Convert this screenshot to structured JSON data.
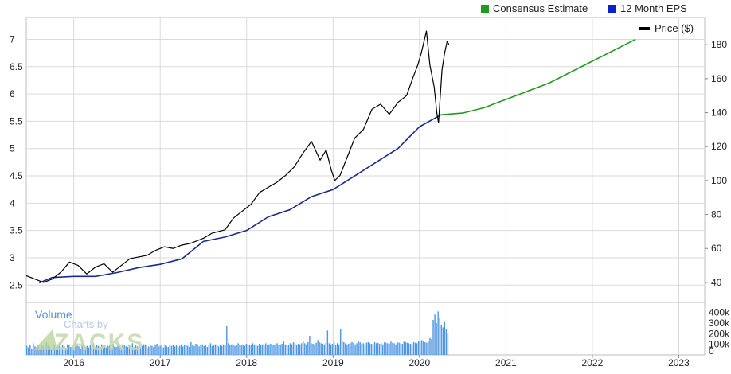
{
  "chart_data": {
    "type": "line",
    "legend": {
      "placement": "top-right",
      "items": [
        {
          "label": "Consensus Estimate",
          "color": "#1f9a1f"
        },
        {
          "label": "12 Month EPS",
          "color": "#0b1fd1"
        },
        {
          "label": "Price ($)",
          "color": "#000000"
        }
      ]
    },
    "grid": true,
    "xaxis": {
      "ticks": [
        "2016",
        "2017",
        "2018",
        "2019",
        "2020",
        "2021",
        "2022",
        "2023"
      ],
      "range": [
        2015.45,
        2023.3
      ]
    },
    "yaxis_left": {
      "ticks": [
        "7",
        "6.5",
        "6",
        "5.5",
        "5",
        "4.5",
        "4",
        "3.5",
        "3",
        "2.5"
      ],
      "range": [
        2.3,
        7.4
      ]
    },
    "yaxis_right": {
      "ticks": [
        "180",
        "160",
        "140",
        "120",
        "100",
        "80",
        "60",
        "40"
      ],
      "range": [
        32,
        196
      ]
    },
    "series": [
      {
        "name": "12 Month EPS",
        "axis": "left",
        "color": "#0b1fd1",
        "points": [
          [
            2015.6,
            2.54
          ],
          [
            2015.75,
            2.64
          ],
          [
            2016.0,
            2.66
          ],
          [
            2016.25,
            2.66
          ],
          [
            2016.5,
            2.73
          ],
          [
            2016.75,
            2.82
          ],
          [
            2017.0,
            2.88
          ],
          [
            2017.25,
            2.98
          ],
          [
            2017.5,
            3.3
          ],
          [
            2017.75,
            3.38
          ],
          [
            2018.0,
            3.5
          ],
          [
            2018.25,
            3.75
          ],
          [
            2018.5,
            3.88
          ],
          [
            2018.75,
            4.12
          ],
          [
            2019.0,
            4.25
          ],
          [
            2019.25,
            4.5
          ],
          [
            2019.5,
            4.75
          ],
          [
            2019.75,
            5.0
          ],
          [
            2020.0,
            5.4
          ],
          [
            2020.25,
            5.62
          ]
        ]
      },
      {
        "name": "Consensus Estimate",
        "axis": "left",
        "color": "#1f9a1f",
        "points": [
          [
            2020.25,
            5.62
          ],
          [
            2020.5,
            5.65
          ],
          [
            2020.75,
            5.75
          ],
          [
            2021.0,
            5.9
          ],
          [
            2021.25,
            6.05
          ],
          [
            2021.5,
            6.2
          ],
          [
            2021.75,
            6.4
          ],
          [
            2022.0,
            6.6
          ],
          [
            2022.25,
            6.8
          ],
          [
            2022.5,
            7.0
          ]
        ]
      },
      {
        "name": "Price ($)",
        "axis": "right",
        "color": "#000000",
        "points": [
          [
            2015.45,
            44
          ],
          [
            2015.55,
            42
          ],
          [
            2015.65,
            40
          ],
          [
            2015.75,
            42
          ],
          [
            2015.85,
            46
          ],
          [
            2015.95,
            52
          ],
          [
            2016.05,
            50
          ],
          [
            2016.15,
            45
          ],
          [
            2016.25,
            49
          ],
          [
            2016.35,
            51
          ],
          [
            2016.45,
            46
          ],
          [
            2016.55,
            50
          ],
          [
            2016.65,
            54
          ],
          [
            2016.75,
            55
          ],
          [
            2016.85,
            56
          ],
          [
            2016.95,
            59
          ],
          [
            2017.05,
            61
          ],
          [
            2017.15,
            60
          ],
          [
            2017.25,
            62
          ],
          [
            2017.35,
            63
          ],
          [
            2017.5,
            66
          ],
          [
            2017.6,
            69
          ],
          [
            2017.75,
            71
          ],
          [
            2017.85,
            78
          ],
          [
            2017.95,
            82
          ],
          [
            2018.05,
            86
          ],
          [
            2018.15,
            93
          ],
          [
            2018.25,
            96
          ],
          [
            2018.35,
            99
          ],
          [
            2018.45,
            103
          ],
          [
            2018.55,
            108
          ],
          [
            2018.65,
            116
          ],
          [
            2018.75,
            123
          ],
          [
            2018.85,
            112
          ],
          [
            2018.92,
            118
          ],
          [
            2018.98,
            106
          ],
          [
            2019.02,
            100
          ],
          [
            2019.08,
            103
          ],
          [
            2019.15,
            112
          ],
          [
            2019.25,
            125
          ],
          [
            2019.35,
            130
          ],
          [
            2019.45,
            142
          ],
          [
            2019.55,
            145
          ],
          [
            2019.65,
            139
          ],
          [
            2019.75,
            146
          ],
          [
            2019.85,
            150
          ],
          [
            2019.92,
            160
          ],
          [
            2019.98,
            168
          ],
          [
            2020.02,
            175
          ],
          [
            2020.08,
            188
          ],
          [
            2020.12,
            168
          ],
          [
            2020.17,
            155
          ],
          [
            2020.2,
            140
          ],
          [
            2020.22,
            134
          ],
          [
            2020.26,
            165
          ],
          [
            2020.29,
            175
          ],
          [
            2020.32,
            182
          ],
          [
            2020.34,
            180
          ]
        ]
      }
    ],
    "volume": {
      "label": "Volume",
      "ticks": [
        "400k",
        "300k",
        "200k",
        "100k",
        "0"
      ],
      "range": [
        0,
        450
      ],
      "color": "#4f97e3",
      "values": [
        85,
        70,
        95,
        60,
        110,
        80,
        75,
        90,
        65,
        100,
        85,
        70,
        120,
        95,
        80,
        60,
        105,
        90,
        75,
        85,
        110,
        70,
        95,
        80,
        65,
        100,
        90,
        75,
        85,
        70,
        115,
        95,
        80,
        60,
        90,
        105,
        75,
        85,
        70,
        95,
        80,
        110,
        65,
        90,
        85,
        75,
        100,
        80,
        95,
        70,
        85,
        90,
        65,
        105,
        80,
        75,
        95,
        85,
        70,
        100,
        90,
        80,
        75,
        95,
        85,
        110,
        70,
        90,
        80,
        95,
        75,
        85,
        100,
        90,
        70,
        80,
        95,
        85,
        75,
        90,
        105,
        80,
        85,
        95,
        70,
        90,
        80,
        75,
        100,
        85,
        95,
        80,
        90,
        75,
        85,
        100,
        80,
        95,
        90,
        85,
        75,
        120,
        95,
        85,
        105,
        90,
        80,
        95,
        100,
        85,
        90,
        75,
        95,
        110,
        85,
        90,
        100,
        95,
        80,
        95,
        85,
        100,
        90,
        270,
        110,
        95,
        100,
        90,
        85,
        95,
        110,
        100,
        90,
        95,
        85,
        105,
        100,
        95,
        90,
        110,
        100,
        95,
        85,
        105,
        95,
        100,
        90,
        110,
        95,
        100,
        105,
        95,
        90,
        100,
        110,
        95,
        100,
        105,
        130,
        100,
        95,
        90,
        110,
        100,
        120,
        110,
        95,
        105,
        100,
        110,
        130,
        110,
        100,
        120,
        180,
        110,
        105,
        100,
        115,
        140,
        120,
        110,
        105,
        100,
        115,
        230,
        110,
        100,
        105,
        120,
        95,
        110,
        100,
        240,
        130,
        120,
        110,
        100,
        105,
        110,
        120,
        115,
        100,
        110,
        130,
        120,
        105,
        110,
        100,
        115,
        120,
        110,
        105,
        100,
        120,
        110,
        115,
        105,
        110,
        100,
        120,
        115,
        110,
        105,
        125,
        115,
        110,
        100,
        120,
        115,
        110,
        105,
        125,
        120,
        115,
        110,
        105,
        100,
        120,
        115,
        110,
        130,
        125,
        140,
        130,
        120,
        115,
        130,
        160,
        150,
        330,
        380,
        300,
        410,
        350,
        280,
        260,
        310,
        240,
        200
      ]
    }
  },
  "watermark": {
    "line1": "Charts by",
    "line2": "ZACKS"
  }
}
